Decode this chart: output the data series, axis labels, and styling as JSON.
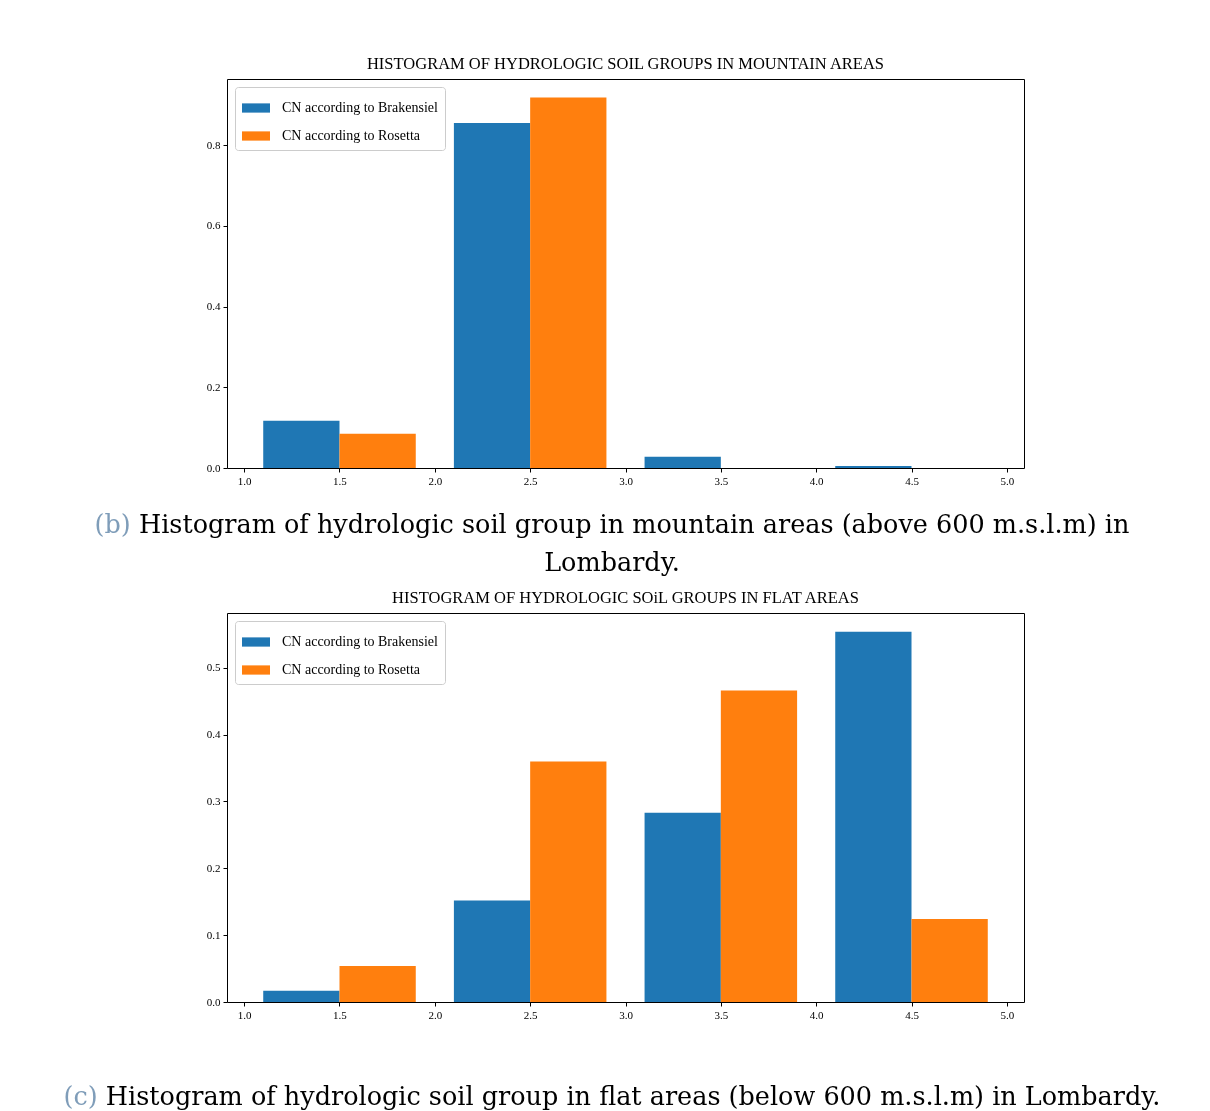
{
  "chart_data": [
    {
      "type": "histogram",
      "title": "HISTOGRAM OF HYDROLOGIC SOIL GROUPS IN MOUNTAIN AREAS",
      "bins": [
        1,
        2,
        3,
        4,
        5
      ],
      "series": [
        {
          "name": "CN according to Brakensiel",
          "color": "#1f77b4",
          "values": [
            0.117,
            0.855,
            0.028,
            0.005
          ]
        },
        {
          "name": "CN according to Rosetta",
          "color": "#ff7f0e",
          "values": [
            0.085,
            0.918,
            0,
            0
          ]
        }
      ],
      "xlim": [
        0.91,
        5.09
      ],
      "xticks": [
        {
          "value": 1,
          "label": "1.0"
        },
        1.5,
        {
          "value": 2,
          "label": "2.0"
        },
        2.5,
        {
          "value": 3,
          "label": "3.0"
        },
        3.5,
        {
          "value": 4,
          "label": "4.0"
        },
        4.5,
        {
          "value": 5,
          "label": "5.0"
        }
      ],
      "ylim": [
        0,
        0.964
      ],
      "yticks": [
        {
          "value": 0,
          "label": "0.0"
        },
        0.2,
        0.4,
        0.6,
        0.8
      ],
      "grid": false,
      "legend": "top left",
      "annotations": [
        "(b)",
        "Histogram of hydrologic soil group in mountain areas (above 600 m.s.l.m) in Lombardy."
      ]
    },
    {
      "type": "histogram",
      "title": "HISTOGRAM OF HYDROLOGIC SOiL GROUPS IN FLAT AREAS",
      "bins": [
        1,
        2,
        3,
        4,
        5
      ],
      "series": [
        {
          "name": "CN according to Brakensiel",
          "color": "#1f77b4",
          "values": [
            0.017,
            0.152,
            0.283,
            0.554
          ]
        },
        {
          "name": "CN according to Rosetta",
          "color": "#ff7f0e",
          "values": [
            0.054,
            0.36,
            0.466,
            0.124
          ]
        }
      ],
      "xlim": [
        0.91,
        5.09
      ],
      "xticks": [
        {
          "value": 1,
          "label": "1.0"
        },
        1.5,
        {
          "value": 2,
          "label": "2.0"
        },
        2.5,
        {
          "value": 3,
          "label": "3.0"
        },
        3.5,
        {
          "value": 4,
          "label": "4.0"
        },
        4.5,
        {
          "value": 5,
          "label": "5.0"
        }
      ],
      "ylim": [
        0,
        0.582
      ],
      "yticks": [
        {
          "value": 0,
          "label": "0.0"
        },
        0.1,
        0.2,
        0.3,
        0.4,
        0.5
      ],
      "grid": false,
      "legend": "top left",
      "annotations": [
        "(c)",
        "Histogram of hydrologic soil group in flat areas (below 600 m.s.l.m) in Lombardy."
      ]
    }
  ]
}
